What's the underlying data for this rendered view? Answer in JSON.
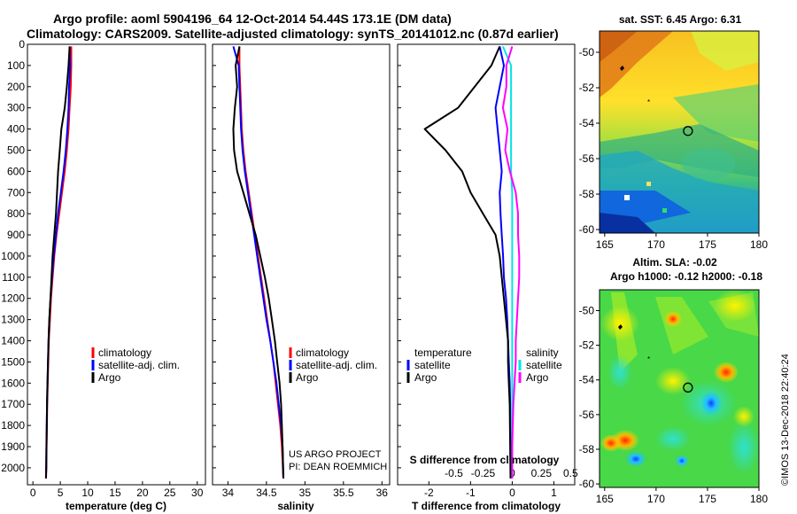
{
  "header": {
    "title1": "Argo profile: aoml 5904196_64 12-Oct-2014 54.44S 173.1E (DM data)",
    "title2": "Climatology: CARS2009. Satellite-adjusted climatology: synTS_20141012.nc (0.87d earlier)"
  },
  "colors": {
    "climatology": "#ff0000",
    "satellite": "#0000ff",
    "argo": "#000000",
    "sat_salinity": "#00e5e5",
    "salinity_diff": "#ff00ff"
  },
  "chart_data": [
    {
      "type": "line",
      "name": "temperature",
      "xlabel": "temperature (deg C)",
      "ylabel": "",
      "xlim": [
        -1,
        31.5
      ],
      "ylim": [
        2080,
        0
      ],
      "xticks": [
        0,
        5,
        10,
        15,
        20,
        25,
        30
      ],
      "yticks": [
        0,
        100,
        200,
        300,
        400,
        500,
        600,
        700,
        800,
        900,
        1000,
        1100,
        1200,
        1300,
        1400,
        1500,
        1600,
        1700,
        1800,
        1900,
        2000
      ],
      "legend": [
        "climatology",
        "satellite-adj. clim.",
        "Argo"
      ],
      "series": [
        {
          "name": "climatology",
          "color": "#ff0000",
          "x": [
            7.0,
            7.0,
            6.9,
            6.7,
            6.5,
            6.2,
            5.8,
            5.3,
            4.8,
            4.3,
            3.9,
            3.6,
            3.3,
            3.1,
            2.9,
            2.8,
            2.7,
            2.6,
            2.55,
            2.5,
            2.45,
            2.4
          ],
          "y": [
            10,
            100,
            200,
            300,
            400,
            500,
            600,
            700,
            800,
            900,
            1000,
            1100,
            1200,
            1300,
            1400,
            1500,
            1600,
            1700,
            1800,
            1900,
            2000,
            2050
          ]
        },
        {
          "name": "satellite-adj. clim.",
          "color": "#0000ff",
          "x": [
            6.7,
            6.8,
            6.6,
            6.5,
            6.3,
            6.0,
            5.6,
            5.1,
            4.6,
            4.2,
            3.8,
            3.5,
            3.2,
            3.0,
            2.85,
            2.75,
            2.65,
            2.58,
            2.52,
            2.48,
            2.42,
            2.38
          ],
          "y": [
            10,
            100,
            200,
            300,
            400,
            500,
            600,
            700,
            800,
            900,
            1000,
            1100,
            1200,
            1300,
            1400,
            1500,
            1600,
            1700,
            1800,
            1900,
            2000,
            2050
          ]
        },
        {
          "name": "Argo",
          "color": "#000000",
          "x": [
            6.7,
            6.5,
            6.2,
            5.8,
            5.2,
            4.9,
            4.6,
            4.4,
            4.2,
            3.9,
            3.6,
            3.4,
            3.2,
            3.0,
            2.85,
            2.75,
            2.65,
            2.58,
            2.52,
            2.46,
            2.42,
            2.38
          ],
          "y": [
            10,
            100,
            200,
            300,
            400,
            500,
            600,
            700,
            800,
            900,
            1000,
            1100,
            1200,
            1300,
            1400,
            1500,
            1600,
            1700,
            1800,
            1900,
            2000,
            2050
          ]
        }
      ]
    },
    {
      "type": "line",
      "name": "salinity",
      "xlabel": "salinity",
      "xlim": [
        33.8,
        36.1
      ],
      "ylim": [
        2080,
        0
      ],
      "xticks": [
        34,
        34.5,
        35,
        35.5,
        36
      ],
      "xticklabels": [
        "34",
        "34.5",
        "35",
        "35.5",
        "36"
      ],
      "legend": [
        "climatology",
        "satellite-adj. clim.",
        "Argo"
      ],
      "annotation": [
        "US ARGO PROJECT",
        "PI: DEAN ROEMMICH"
      ],
      "series": [
        {
          "name": "climatology",
          "color": "#ff0000",
          "x": [
            34.15,
            34.15,
            34.16,
            34.17,
            34.18,
            34.2,
            34.23,
            34.27,
            34.31,
            34.35,
            34.39,
            34.43,
            34.47,
            34.51,
            34.55,
            34.59,
            34.62,
            34.65,
            34.68,
            34.7,
            34.72
          ],
          "y": [
            10,
            100,
            200,
            300,
            400,
            500,
            600,
            700,
            800,
            900,
            1000,
            1100,
            1200,
            1300,
            1400,
            1500,
            1600,
            1700,
            1800,
            1900,
            2050
          ]
        },
        {
          "name": "satellite-adj. clim.",
          "color": "#0000ff",
          "x": [
            34.07,
            34.14,
            34.15,
            34.16,
            34.17,
            34.19,
            34.22,
            34.26,
            34.3,
            34.34,
            34.38,
            34.42,
            34.46,
            34.5,
            34.55,
            34.59,
            34.63,
            34.66,
            34.69,
            34.71,
            34.72
          ],
          "y": [
            10,
            100,
            200,
            300,
            400,
            500,
            600,
            700,
            800,
            900,
            1000,
            1100,
            1200,
            1300,
            1400,
            1500,
            1600,
            1700,
            1800,
            1900,
            2050
          ]
        },
        {
          "name": "Argo",
          "color": "#000000",
          "x": [
            34.15,
            34.1,
            34.12,
            34.09,
            34.07,
            34.08,
            34.12,
            34.2,
            34.28,
            34.36,
            34.42,
            34.48,
            34.53,
            34.57,
            34.61,
            34.64,
            34.67,
            34.69,
            34.7,
            34.71,
            34.72
          ],
          "y": [
            10,
            100,
            200,
            300,
            400,
            500,
            600,
            700,
            800,
            900,
            1000,
            1100,
            1200,
            1300,
            1400,
            1500,
            1600,
            1700,
            1800,
            1900,
            2050
          ]
        }
      ]
    },
    {
      "type": "line",
      "name": "difference",
      "xlabel": "T difference from climatology",
      "secondary_label": "S difference from climatology",
      "xlim": [
        -2.75,
        1.5
      ],
      "ylim": [
        2080,
        0
      ],
      "xticks": [
        -2,
        -1,
        0,
        1
      ],
      "s_xticks": [
        -0.5,
        -0.25,
        0,
        0.25,
        0.5
      ],
      "s_xticklabels": [
        "-0.5",
        "-0.25",
        "0",
        "0.25",
        "0.5"
      ],
      "legend_temperature": {
        "title": "temperature",
        "items": [
          "satellite",
          "Argo"
        ]
      },
      "legend_salinity": {
        "title": "salinity",
        "items": [
          "satellite",
          "Argo"
        ]
      },
      "series": [
        {
          "name": "T satellite",
          "color": "#0000ff",
          "x": [
            -0.3,
            -0.2,
            -0.3,
            -0.4,
            -0.35,
            -0.3,
            -0.25,
            -0.3,
            -0.28,
            -0.25,
            -0.22,
            -0.2,
            -0.15,
            -0.12,
            -0.1,
            -0.08,
            -0.06,
            -0.05,
            -0.04,
            -0.03
          ],
          "y": [
            10,
            100,
            200,
            300,
            400,
            500,
            600,
            700,
            800,
            900,
            1000,
            1100,
            1200,
            1300,
            1400,
            1500,
            1600,
            1700,
            1900,
            2050
          ]
        },
        {
          "name": "T Argo",
          "color": "#000000",
          "x": [
            -0.3,
            -0.5,
            -0.9,
            -1.3,
            -2.1,
            -1.6,
            -1.2,
            -1.0,
            -0.7,
            -0.4,
            -0.3,
            -0.25,
            -0.2,
            -0.15,
            -0.1,
            -0.1,
            -0.08,
            -0.06,
            -0.05,
            -0.04
          ],
          "y": [
            10,
            100,
            200,
            300,
            400,
            500,
            600,
            700,
            800,
            900,
            1000,
            1100,
            1200,
            1300,
            1400,
            1500,
            1600,
            1700,
            1900,
            2050
          ]
        },
        {
          "name": "S satellite",
          "color": "#00e5e5",
          "x": [
            -0.08,
            -0.01,
            -0.01,
            -0.01,
            -0.01,
            -0.01,
            -0.01,
            0.0,
            0.0,
            0.0,
            0.0,
            0.0,
            0.0,
            0.0,
            0.0,
            0.0,
            0.0,
            0.0,
            0.0,
            0.0
          ],
          "y": [
            10,
            100,
            200,
            300,
            400,
            500,
            600,
            700,
            800,
            900,
            1000,
            1100,
            1200,
            1300,
            1400,
            1500,
            1600,
            1700,
            1900,
            2050
          ]
        },
        {
          "name": "S Argo",
          "color": "#ff00ff",
          "x": [
            0.0,
            -0.05,
            -0.05,
            -0.08,
            -0.04,
            -0.06,
            -0.02,
            0.03,
            0.05,
            0.05,
            0.06,
            0.06,
            0.05,
            0.04,
            0.03,
            0.03,
            0.02,
            0.01,
            0.0,
            0.0
          ],
          "y": [
            10,
            100,
            200,
            300,
            400,
            500,
            600,
            700,
            800,
            900,
            1000,
            1100,
            1200,
            1300,
            1400,
            1500,
            1600,
            1700,
            1900,
            2050
          ]
        }
      ]
    },
    {
      "type": "heatmap",
      "name": "sst_map",
      "title": "sat. SST: 6.45 Argo: 6.31",
      "xticks": [
        165,
        170,
        175,
        180
      ],
      "yticks": [
        -50,
        -52,
        -54,
        -56,
        -58,
        -60
      ],
      "xlim": [
        164.5,
        180
      ],
      "ylim": [
        -60.2,
        -48.8
      ],
      "argo_position": [
        173.1,
        -54.44
      ]
    },
    {
      "type": "heatmap",
      "name": "sla_map",
      "title": "Altim. SLA: -0.02",
      "subtitle": "Argo h1000: -0.12 h2000: -0.18",
      "xticks": [
        165,
        170,
        175,
        180
      ],
      "yticks": [
        -50,
        -52,
        -54,
        -56,
        -58,
        -60
      ],
      "xlim": [
        164.5,
        180
      ],
      "ylim": [
        -60.2,
        -48.8
      ],
      "argo_position": [
        173.1,
        -54.44
      ]
    }
  ],
  "credit": "©IMOS 13-Dec-2018 22:40:24"
}
